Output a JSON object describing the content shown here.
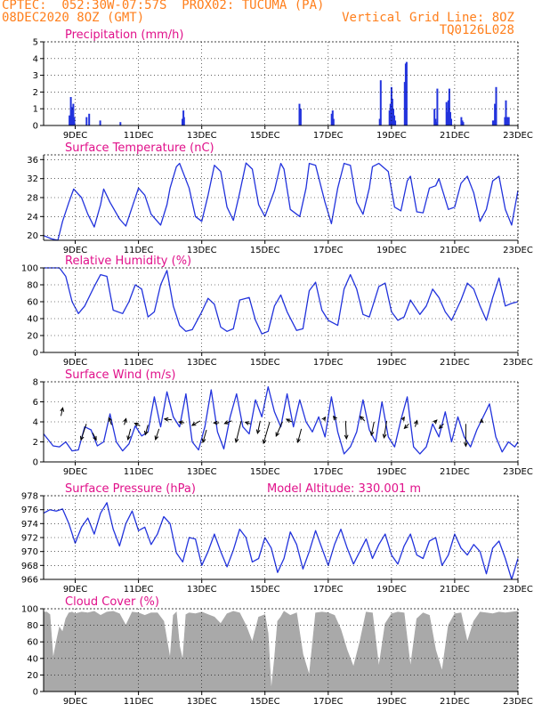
{
  "header": {
    "line1": "CPTEC:  052:30W-07:57S  PROX02: TUCUMA (PA)",
    "line2": "08DEC2020 8OZ (GMT)",
    "grid_note": "Vertical Grid Line: 8OZ",
    "code": "TQ0126L028"
  },
  "colors": {
    "header": "#ff7f1c",
    "titles": "#e0108a",
    "series": "#2233dd",
    "cloud": "#a9a9a9",
    "arrows": "#000000"
  },
  "chart_data": [
    {
      "id": "precip",
      "type": "bar",
      "title": "Precipitation (mm/h)",
      "ylim": [
        0,
        5
      ],
      "yticks": [
        0,
        1,
        2,
        3,
        4,
        5
      ],
      "xlim": [
        0,
        15
      ],
      "xticks": [
        1,
        3,
        5,
        7,
        9,
        11,
        13,
        15
      ],
      "xticklabels": [
        "9DEC",
        "11DEC",
        "13DEC",
        "15DEC",
        "17DEC",
        "19DEC",
        "21DEC",
        "23DEC"
      ],
      "grid": "dashed",
      "x": [
        0.82,
        0.86,
        0.88,
        0.91,
        0.94,
        0.97,
        1.36,
        1.44,
        1.79,
        2.43,
        4.39,
        4.42,
        4.44,
        8.09,
        8.13,
        9.11,
        9.14,
        9.17,
        10.63,
        10.66,
        10.94,
        10.97,
        11.0,
        11.03,
        11.06,
        11.09,
        11.12,
        11.42,
        11.45,
        11.48,
        12.36,
        12.39,
        12.42,
        12.45,
        12.74,
        12.77,
        12.8,
        12.83,
        12.86,
        12.89,
        13.21,
        13.24,
        13.27,
        14.21,
        14.24,
        14.27,
        14.31,
        14.59,
        14.62,
        14.65,
        14.68,
        14.71
      ],
      "values": [
        0.6,
        1.7,
        0.7,
        1.1,
        1.3,
        0.5,
        0.5,
        0.7,
        0.3,
        0.2,
        0.4,
        0.9,
        0.5,
        1.3,
        1.0,
        0.7,
        0.9,
        0.4,
        0.4,
        2.7,
        0.9,
        1.3,
        2.3,
        1.6,
        1.0,
        0.6,
        0.3,
        2.6,
        3.7,
        3.8,
        1.0,
        0.4,
        0.2,
        2.2,
        1.4,
        0.8,
        1.5,
        2.2,
        0.8,
        0.4,
        0.5,
        0.3,
        0.2,
        0.3,
        0.3,
        1.3,
        2.3,
        0.5,
        1.5,
        0.5,
        0.5,
        0.5
      ]
    },
    {
      "id": "temp",
      "type": "line",
      "title": "Surface Temperature (nC)",
      "ylim": [
        19,
        37
      ],
      "yticks": [
        20,
        24,
        28,
        32,
        36
      ],
      "xlim": [
        0,
        15
      ],
      "xticks": [
        1,
        3,
        5,
        7,
        9,
        11,
        13,
        15
      ],
      "xticklabels": [
        "9DEC",
        "11DEC",
        "13DEC",
        "15DEC",
        "17DEC",
        "19DEC",
        "21DEC",
        "23DEC"
      ],
      "grid": "dashed",
      "x": [
        0.0,
        0.25,
        0.45,
        0.6,
        0.8,
        0.95,
        1.2,
        1.4,
        1.6,
        1.8,
        1.9,
        2.1,
        2.4,
        2.6,
        2.8,
        3.0,
        3.2,
        3.4,
        3.7,
        3.9,
        4.0,
        4.2,
        4.3,
        4.6,
        4.8,
        5.0,
        5.2,
        5.4,
        5.6,
        5.8,
        6.0,
        6.2,
        6.4,
        6.6,
        6.8,
        7.0,
        7.3,
        7.5,
        7.6,
        7.8,
        8.1,
        8.3,
        8.4,
        8.6,
        8.9,
        9.1,
        9.3,
        9.5,
        9.7,
        9.9,
        10.1,
        10.3,
        10.4,
        10.6,
        10.9,
        11.1,
        11.3,
        11.5,
        11.6,
        11.8,
        12.0,
        12.2,
        12.4,
        12.5,
        12.8,
        13.0,
        13.2,
        13.4,
        13.6,
        13.8,
        14.0,
        14.2,
        14.4,
        14.6,
        14.8,
        15.0
      ],
      "values": [
        20.0,
        19.3,
        19.0,
        23.0,
        27.0,
        29.8,
        28.0,
        24.5,
        21.8,
        26.5,
        29.8,
        27.0,
        23.5,
        22.0,
        26.0,
        30.0,
        28.5,
        24.5,
        22.2,
        26.5,
        30.0,
        34.5,
        35.2,
        30.0,
        24.0,
        23.0,
        28.5,
        34.8,
        33.5,
        26.0,
        23.2,
        29.0,
        35.3,
        34.0,
        26.5,
        24.0,
        29.5,
        35.2,
        34.0,
        25.5,
        24.0,
        30.0,
        35.2,
        34.8,
        27.0,
        22.5,
        30.0,
        35.2,
        34.8,
        27.0,
        24.5,
        30.0,
        34.5,
        35.2,
        33.5,
        26.0,
        25.2,
        31.5,
        32.5,
        25.0,
        24.8,
        30.0,
        30.5,
        32.0,
        25.5,
        26.0,
        31.0,
        32.5,
        29.0,
        23.0,
        25.5,
        31.5,
        32.5,
        25.5,
        22.2,
        29.5
      ]
    },
    {
      "id": "rh",
      "type": "line",
      "title": "Relative Humidity (%)",
      "ylim": [
        0,
        100
      ],
      "yticks": [
        0,
        20,
        40,
        60,
        80,
        100
      ],
      "xlim": [
        0,
        15
      ],
      "xticks": [
        1,
        3,
        5,
        7,
        9,
        11,
        13,
        15
      ],
      "xticklabels": [
        "9DEC",
        "11DEC",
        "13DEC",
        "15DEC",
        "17DEC",
        "19DEC",
        "21DEC",
        "23DEC"
      ],
      "grid": "dashed",
      "x": [
        0.0,
        0.5,
        0.7,
        0.9,
        1.1,
        1.3,
        1.6,
        1.8,
        2.0,
        2.2,
        2.5,
        2.7,
        2.9,
        3.1,
        3.3,
        3.5,
        3.7,
        3.9,
        4.1,
        4.3,
        4.5,
        4.7,
        5.0,
        5.2,
        5.4,
        5.6,
        5.8,
        6.0,
        6.2,
        6.5,
        6.7,
        6.9,
        7.1,
        7.3,
        7.5,
        7.7,
        8.0,
        8.2,
        8.4,
        8.6,
        8.8,
        9.0,
        9.3,
        9.5,
        9.7,
        9.9,
        10.1,
        10.3,
        10.6,
        10.8,
        11.0,
        11.2,
        11.4,
        11.6,
        11.9,
        12.1,
        12.3,
        12.5,
        12.7,
        12.9,
        13.2,
        13.4,
        13.6,
        13.8,
        14.0,
        14.2,
        14.4,
        14.6,
        14.8,
        15.0
      ],
      "values": [
        100,
        100,
        90,
        60,
        46,
        55,
        78,
        92,
        90,
        50,
        46,
        60,
        80,
        75,
        42,
        48,
        80,
        97,
        55,
        32,
        25,
        27,
        48,
        64,
        57,
        30,
        25,
        28,
        62,
        65,
        38,
        22,
        25,
        55,
        68,
        48,
        26,
        28,
        73,
        83,
        50,
        38,
        32,
        75,
        92,
        75,
        45,
        42,
        78,
        82,
        48,
        38,
        42,
        62,
        45,
        55,
        75,
        65,
        48,
        38,
        62,
        82,
        75,
        55,
        38,
        65,
        88,
        55,
        58,
        60
      ]
    },
    {
      "id": "wind",
      "type": "line",
      "title": "Surface Wind (m/s)",
      "ylim": [
        0,
        8
      ],
      "yticks": [
        0,
        2,
        4,
        6,
        8
      ],
      "xlim": [
        0,
        15
      ],
      "xticks": [
        1,
        3,
        5,
        7,
        9,
        11,
        13,
        15
      ],
      "xticklabels": [
        "9DEC",
        "11DEC",
        "13DEC",
        "15DEC",
        "17DEC",
        "19DEC",
        "21DEC",
        "23DEC"
      ],
      "grid": "dashed",
      "x": [
        0.0,
        0.3,
        0.5,
        0.7,
        0.9,
        1.1,
        1.3,
        1.5,
        1.7,
        1.9,
        2.1,
        2.3,
        2.5,
        2.7,
        2.9,
        3.1,
        3.3,
        3.5,
        3.7,
        3.9,
        4.1,
        4.3,
        4.5,
        4.7,
        4.9,
        5.1,
        5.3,
        5.5,
        5.7,
        5.9,
        6.1,
        6.3,
        6.5,
        6.7,
        6.9,
        7.1,
        7.3,
        7.5,
        7.7,
        7.9,
        8.1,
        8.3,
        8.5,
        8.7,
        8.9,
        9.1,
        9.3,
        9.5,
        9.7,
        9.9,
        10.1,
        10.3,
        10.5,
        10.7,
        10.9,
        11.1,
        11.3,
        11.5,
        11.7,
        11.9,
        12.1,
        12.3,
        12.5,
        12.7,
        12.9,
        13.1,
        13.3,
        13.5,
        13.7,
        13.9,
        14.1,
        14.3,
        14.5,
        14.7,
        14.9,
        15.0
      ],
      "values": [
        2.8,
        1.6,
        1.5,
        2.0,
        1.1,
        1.2,
        3.5,
        3.2,
        1.6,
        2.0,
        4.8,
        2.0,
        1.1,
        1.8,
        3.6,
        2.6,
        3.0,
        6.5,
        3.5,
        7.0,
        4.5,
        3.5,
        6.8,
        2.0,
        1.2,
        3.5,
        7.2,
        3.0,
        1.3,
        4.5,
        6.8,
        3.5,
        2.8,
        6.2,
        4.5,
        7.5,
        5.0,
        3.5,
        6.8,
        3.5,
        6.2,
        4.0,
        3.0,
        4.5,
        2.5,
        6.5,
        3.0,
        0.8,
        1.5,
        3.0,
        6.2,
        3.2,
        2.0,
        6.0,
        2.5,
        1.5,
        4.2,
        6.5,
        1.5,
        0.8,
        1.5,
        3.8,
        2.5,
        5.0,
        2.0,
        4.5,
        2.5,
        1.5,
        3.2,
        4.5,
        5.8,
        2.5,
        1.0,
        2.0,
        1.5,
        2.0
      ],
      "arrows": [
        {
          "x": 0.55,
          "y": 4.6,
          "u": 0.2,
          "v": 0.9
        },
        {
          "x": 1.35,
          "y": 3.8,
          "u": -0.6,
          "v": -1.8
        },
        {
          "x": 1.55,
          "y": 2.9,
          "u": 0.4,
          "v": -0.8
        },
        {
          "x": 2.15,
          "y": 3.7,
          "u": -0.3,
          "v": 0.8
        },
        {
          "x": 2.55,
          "y": 3.7,
          "u": 0.2,
          "v": 0.7
        },
        {
          "x": 2.75,
          "y": 3.3,
          "u": -0.3,
          "v": -1.2
        },
        {
          "x": 3.05,
          "y": 3.6,
          "u": -0.6,
          "v": 0.3
        },
        {
          "x": 3.3,
          "y": 3.7,
          "u": -0.3,
          "v": -1.1
        },
        {
          "x": 3.65,
          "y": 3.3,
          "u": -0.4,
          "v": -1.2
        },
        {
          "x": 4.05,
          "y": 4.2,
          "u": -0.8,
          "v": 0.1
        },
        {
          "x": 4.45,
          "y": 3.9,
          "u": -0.6,
          "v": 0.1
        },
        {
          "x": 4.95,
          "y": 4.1,
          "u": -0.9,
          "v": -0.5
        },
        {
          "x": 5.15,
          "y": 3.2,
          "u": -0.4,
          "v": -1.4
        },
        {
          "x": 5.55,
          "y": 3.9,
          "u": -0.6,
          "v": 0.0
        },
        {
          "x": 5.95,
          "y": 4.1,
          "u": -0.8,
          "v": -0.3
        },
        {
          "x": 6.25,
          "y": 4.1,
          "u": -0.6,
          "v": -2.4
        },
        {
          "x": 6.55,
          "y": 3.8,
          "u": -0.6,
          "v": 0.2
        },
        {
          "x": 6.85,
          "y": 4.1,
          "u": -0.3,
          "v": -1.4
        },
        {
          "x": 7.15,
          "y": 4.0,
          "u": -0.7,
          "v": -2.4
        },
        {
          "x": 7.55,
          "y": 4.0,
          "u": -0.7,
          "v": -1.6
        },
        {
          "x": 7.85,
          "y": 4.0,
          "u": -0.6,
          "v": 0.3
        },
        {
          "x": 8.15,
          "y": 3.3,
          "u": -0.4,
          "v": -1.5
        },
        {
          "x": 8.85,
          "y": 4.2,
          "u": 0.2,
          "v": 0.3
        },
        {
          "x": 9.25,
          "y": 4.2,
          "u": -0.3,
          "v": 0.4
        },
        {
          "x": 9.55,
          "y": 4.1,
          "u": 0.1,
          "v": -2.0
        },
        {
          "x": 10.15,
          "y": 4.1,
          "u": -0.5,
          "v": 0.5
        },
        {
          "x": 10.45,
          "y": 4.0,
          "u": -0.3,
          "v": -1.5
        },
        {
          "x": 10.85,
          "y": 4.1,
          "u": -0.3,
          "v": -1.9
        },
        {
          "x": 11.35,
          "y": 4.2,
          "u": 0.2,
          "v": 0.3
        },
        {
          "x": 11.55,
          "y": 3.8,
          "u": -0.5,
          "v": -0.5
        },
        {
          "x": 11.75,
          "y": 3.5,
          "u": 0.2,
          "v": 0.7
        },
        {
          "x": 12.35,
          "y": 3.9,
          "u": 0.3,
          "v": 0.3
        },
        {
          "x": 12.65,
          "y": 3.8,
          "u": -0.5,
          "v": -0.5
        },
        {
          "x": 13.35,
          "y": 3.8,
          "u": 0.0,
          "v": -2.5
        },
        {
          "x": 13.85,
          "y": 3.9,
          "u": 0.0,
          "v": 0.4
        }
      ]
    },
    {
      "id": "pressure",
      "type": "line",
      "title": "Surface Pressure (hPa)",
      "annotation": "Model Altitude: 330.001 m",
      "ylim": [
        966,
        978
      ],
      "yticks": [
        966,
        968,
        970,
        972,
        974,
        976,
        978
      ],
      "xlim": [
        0,
        15
      ],
      "xticks": [
        1,
        3,
        5,
        7,
        9,
        11,
        13,
        15
      ],
      "xticklabels": [
        "9DEC",
        "11DEC",
        "13DEC",
        "15DEC",
        "17DEC",
        "19DEC",
        "21DEC",
        "23DEC"
      ],
      "grid": "dashed",
      "x": [
        0.0,
        0.2,
        0.4,
        0.6,
        0.8,
        1.0,
        1.2,
        1.4,
        1.6,
        1.8,
        2.0,
        2.2,
        2.4,
        2.6,
        2.8,
        3.0,
        3.2,
        3.4,
        3.6,
        3.8,
        4.0,
        4.2,
        4.4,
        4.6,
        4.8,
        5.0,
        5.2,
        5.4,
        5.6,
        5.8,
        6.0,
        6.2,
        6.4,
        6.6,
        6.8,
        7.0,
        7.2,
        7.4,
        7.6,
        7.8,
        8.0,
        8.2,
        8.4,
        8.6,
        8.8,
        9.0,
        9.2,
        9.4,
        9.6,
        9.8,
        10.0,
        10.2,
        10.4,
        10.6,
        10.8,
        11.0,
        11.2,
        11.4,
        11.6,
        11.8,
        12.0,
        12.2,
        12.4,
        12.6,
        12.8,
        13.0,
        13.2,
        13.4,
        13.6,
        13.8,
        14.0,
        14.2,
        14.4,
        14.6,
        14.8,
        15.0
      ],
      "values": [
        975.5,
        976.0,
        975.8,
        976.1,
        974.0,
        971.2,
        973.5,
        974.8,
        972.5,
        975.5,
        977.0,
        973.2,
        970.8,
        974.0,
        975.8,
        973.0,
        973.5,
        971.0,
        972.5,
        975.0,
        974.0,
        969.8,
        968.5,
        972.0,
        971.8,
        968.0,
        970.0,
        972.5,
        970.0,
        967.8,
        970.2,
        973.2,
        972.0,
        968.5,
        969.0,
        972.0,
        970.5,
        967.0,
        969.0,
        972.8,
        971.0,
        967.5,
        970.0,
        973.0,
        970.5,
        968.0,
        971.0,
        973.2,
        970.5,
        968.2,
        970.0,
        971.8,
        969.0,
        971.0,
        972.5,
        969.5,
        968.2,
        970.8,
        972.5,
        969.5,
        969.0,
        971.5,
        972.0,
        968.0,
        969.5,
        972.5,
        970.5,
        969.5,
        971.0,
        970.0,
        966.8,
        970.5,
        971.5,
        969.0,
        966.0,
        969.0
      ]
    },
    {
      "id": "cloud",
      "type": "area",
      "title": "Cloud Cover (%)",
      "ylim": [
        0,
        100
      ],
      "yticks": [
        0,
        20,
        40,
        60,
        80,
        100
      ],
      "xlim": [
        0,
        15
      ],
      "xticks": [
        1,
        3,
        5,
        7,
        9,
        11,
        13,
        15
      ],
      "xticklabels": [
        "9DEC",
        "11DEC",
        "13DEC",
        "15DEC",
        "17DEC",
        "19DEC",
        "21DEC",
        "23DEC"
      ],
      "grid": "dashed",
      "x": [
        0.0,
        0.1,
        0.2,
        0.3,
        0.4,
        0.5,
        0.6,
        0.7,
        0.8,
        0.9,
        1.0,
        1.2,
        1.4,
        1.6,
        1.8,
        2.0,
        2.2,
        2.4,
        2.6,
        2.8,
        3.0,
        3.2,
        3.4,
        3.6,
        3.8,
        4.0,
        4.1,
        4.2,
        4.3,
        4.4,
        4.5,
        4.6,
        4.8,
        5.0,
        5.2,
        5.4,
        5.6,
        5.8,
        6.0,
        6.2,
        6.4,
        6.6,
        6.8,
        7.0,
        7.1,
        7.2,
        7.3,
        7.4,
        7.5,
        7.6,
        7.8,
        8.0,
        8.2,
        8.4,
        8.6,
        8.8,
        9.0,
        9.2,
        9.4,
        9.6,
        9.8,
        10.0,
        10.2,
        10.4,
        10.6,
        10.8,
        11.0,
        11.2,
        11.4,
        11.6,
        11.8,
        12.0,
        12.2,
        12.4,
        12.6,
        12.8,
        13.0,
        13.2,
        13.4,
        13.6,
        13.8,
        14.0,
        14.2,
        14.4,
        14.6,
        14.8,
        15.0
      ],
      "values": [
        96,
        96,
        93,
        40,
        60,
        78,
        72,
        88,
        95,
        96,
        94,
        96,
        95,
        97,
        92,
        96,
        97,
        94,
        80,
        96,
        95,
        92,
        95,
        95,
        85,
        40,
        92,
        96,
        55,
        38,
        93,
        95,
        94,
        96,
        93,
        90,
        82,
        94,
        97,
        95,
        80,
        60,
        90,
        93,
        70,
        2,
        40,
        85,
        90,
        97,
        92,
        95,
        45,
        20,
        95,
        96,
        95,
        92,
        75,
        50,
        30,
        60,
        96,
        95,
        30,
        82,
        94,
        96,
        95,
        30,
        88,
        95,
        92,
        50,
        25,
        80,
        94,
        95,
        60,
        85,
        96,
        95,
        94,
        96,
        95,
        96,
        97
      ]
    }
  ]
}
